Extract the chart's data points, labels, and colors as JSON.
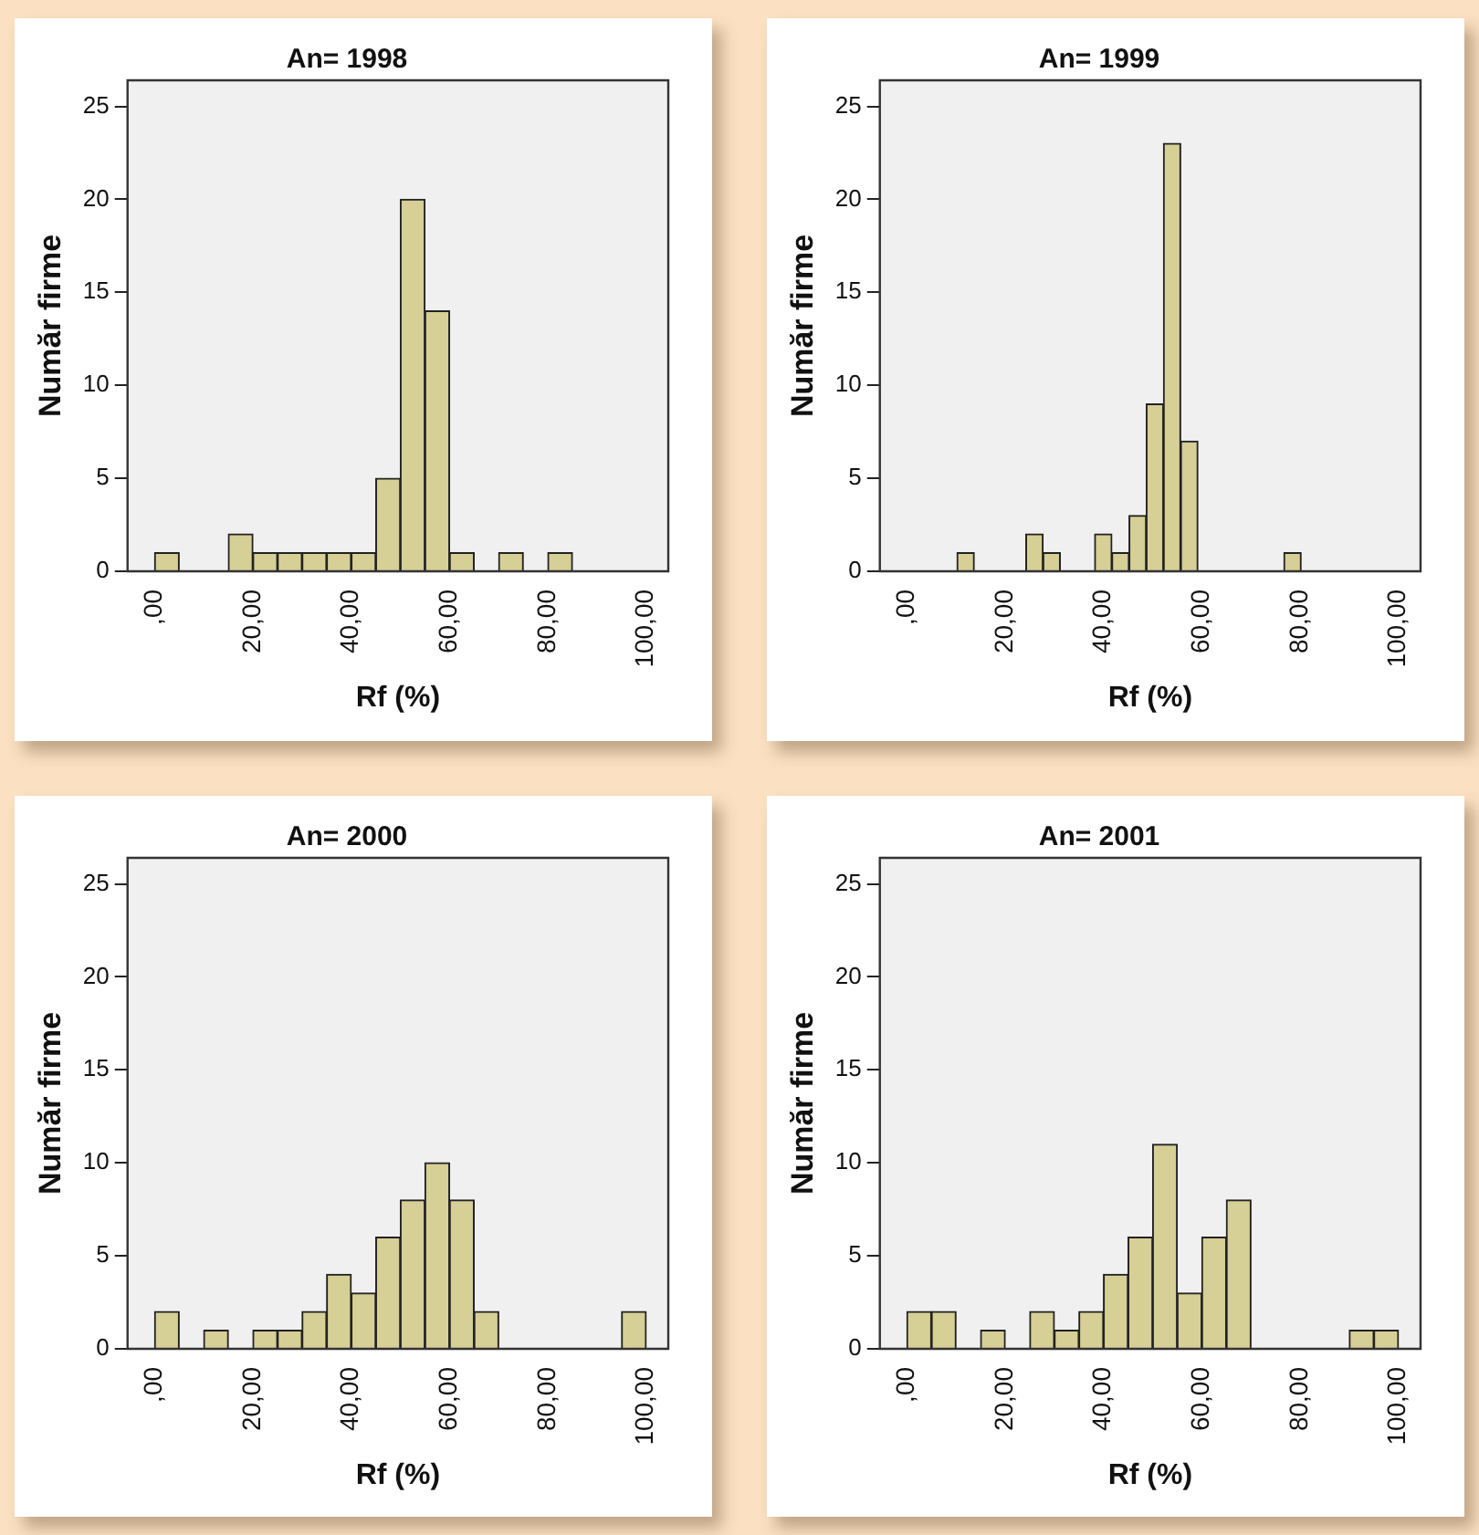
{
  "chart_data": [
    {
      "type": "histogram",
      "title": "An= 1998",
      "xlabel": "Rf (%)",
      "ylabel": "Număr firme",
      "color": "#d6cf96",
      "bins": [
        0,
        5,
        10,
        15,
        20,
        25,
        30,
        35,
        40,
        45,
        50,
        55,
        60,
        65,
        70,
        75,
        80,
        85
      ],
      "values": [
        1,
        0,
        0,
        2,
        1,
        1,
        1,
        1,
        1,
        5,
        20,
        14,
        1,
        0,
        1,
        0,
        1
      ],
      "xlim": [
        -5.5,
        104.5
      ],
      "xticks": [
        {
          "value": 0,
          "label": ",00"
        },
        {
          "value": 20,
          "label": "20,00"
        },
        {
          "value": 40,
          "label": "40,00"
        },
        {
          "value": 60,
          "label": "60,00"
        },
        {
          "value": 80,
          "label": "80,00"
        },
        {
          "value": 100,
          "label": "100,00"
        }
      ],
      "ylim": [
        0,
        26.4
      ],
      "yticks": [
        0,
        5,
        10,
        15,
        20,
        25
      ]
    },
    {
      "type": "histogram",
      "title": "An= 1999",
      "xlabel": "Rf (%)",
      "ylabel": "Număr firme",
      "color": "#d6cf96",
      "bins": [
        10.2,
        13.7,
        17.2,
        20.7,
        24.2,
        27.7,
        31.2,
        34.7,
        38.2,
        41.7,
        45.2,
        48.7,
        52.2,
        55.7,
        59.2,
        62.7,
        66.2,
        69.7,
        73.2,
        76.7,
        80.2
      ],
      "values": [
        1,
        0,
        0,
        0,
        2,
        1,
        0,
        0,
        2,
        1,
        3,
        9,
        23,
        7,
        0,
        0,
        0,
        0,
        0,
        1
      ],
      "xlim": [
        -5.5,
        104.5
      ],
      "xticks": [
        {
          "value": 0,
          "label": ",00"
        },
        {
          "value": 20,
          "label": "20,00"
        },
        {
          "value": 40,
          "label": "40,00"
        },
        {
          "value": 60,
          "label": "60,00"
        },
        {
          "value": 80,
          "label": "80,00"
        },
        {
          "value": 100,
          "label": "100,00"
        }
      ],
      "ylim": [
        0,
        26.4
      ],
      "yticks": [
        0,
        5,
        10,
        15,
        20,
        25
      ]
    },
    {
      "type": "histogram",
      "title": "An= 2000",
      "xlabel": "Rf (%)",
      "ylabel": "Număr firme",
      "color": "#d6cf96",
      "bins": [
        0,
        5,
        10,
        15,
        20,
        25,
        30,
        35,
        40,
        45,
        50,
        55,
        60,
        65,
        70,
        75,
        80,
        85,
        90,
        95,
        100
      ],
      "values": [
        2,
        0,
        1,
        0,
        1,
        1,
        2,
        4,
        3,
        6,
        8,
        10,
        8,
        2,
        0,
        0,
        0,
        0,
        0,
        2
      ],
      "xlim": [
        -5.5,
        104.5
      ],
      "xticks": [
        {
          "value": 0,
          "label": ",00"
        },
        {
          "value": 20,
          "label": "20,00"
        },
        {
          "value": 40,
          "label": "40,00"
        },
        {
          "value": 60,
          "label": "60,00"
        },
        {
          "value": 80,
          "label": "80,00"
        },
        {
          "value": 100,
          "label": "100,00"
        }
      ],
      "ylim": [
        0,
        26.4
      ],
      "yticks": [
        0,
        5,
        10,
        15,
        20,
        25
      ]
    },
    {
      "type": "histogram",
      "title": "An= 2001",
      "xlabel": "Rf (%)",
      "ylabel": "Număr firme",
      "color": "#d6cf96",
      "bins": [
        0,
        5,
        10,
        15,
        20,
        25,
        30,
        35,
        40,
        45,
        50,
        55,
        60,
        65,
        70,
        75,
        80,
        85,
        90,
        95,
        100
      ],
      "values": [
        2,
        2,
        0,
        1,
        0,
        2,
        1,
        2,
        4,
        6,
        11,
        3,
        6,
        8,
        0,
        0,
        0,
        0,
        1,
        1
      ],
      "xlim": [
        -5.5,
        104.5
      ],
      "xticks": [
        {
          "value": 0,
          "label": ",00"
        },
        {
          "value": 20,
          "label": "20,00"
        },
        {
          "value": 40,
          "label": "40,00"
        },
        {
          "value": 60,
          "label": "60,00"
        },
        {
          "value": 80,
          "label": "80,00"
        },
        {
          "value": 100,
          "label": "100,00"
        }
      ],
      "ylim": [
        0,
        26.4
      ],
      "yticks": [
        0,
        5,
        10,
        15,
        20,
        25
      ]
    }
  ]
}
